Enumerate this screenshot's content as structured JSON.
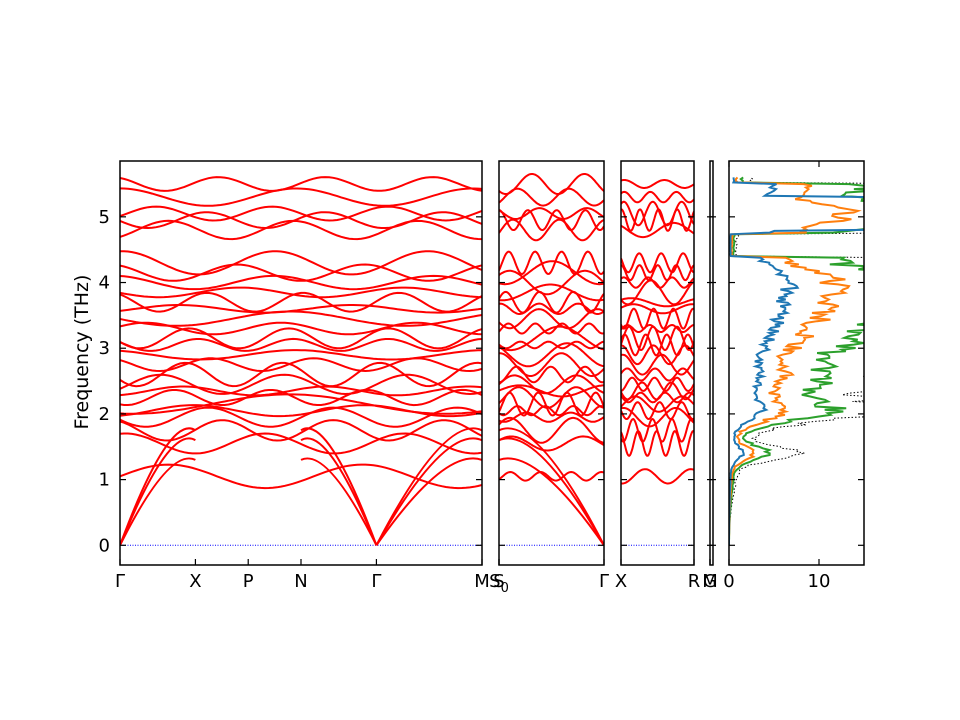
{
  "chart_data": {
    "type": "line",
    "title": "",
    "ylabel": "Frequency (THz)",
    "ylim": [
      -0.3,
      5.85
    ],
    "yticks": [
      0,
      1,
      2,
      3,
      4,
      5
    ],
    "grid": false,
    "legend": "none",
    "colors": {
      "bands": "#ff0000",
      "zero_line": "#0000ff",
      "dos_total": "#000000",
      "dos_proj": [
        "#1f77b4",
        "#ff7f0e",
        "#2ca02c"
      ]
    },
    "segments": [
      {
        "name": "path-1",
        "points": [
          {
            "label": "Γ",
            "x": 0.0
          },
          {
            "label": "X",
            "x": 0.5
          },
          {
            "label": "P",
            "x": 0.85
          },
          {
            "label": "N",
            "x": 1.2
          },
          {
            "label": "Γ",
            "x": 1.7
          },
          {
            "label": "M",
            "x": 2.4
          }
        ]
      },
      {
        "name": "path-2",
        "points": [
          {
            "label": "S",
            "x": 0.0
          },
          {
            "label": "S",
            "sub": "0",
            "x": 0.0
          },
          {
            "label": "Γ",
            "x": 1.0
          }
        ]
      },
      {
        "name": "path-3",
        "points": [
          {
            "label": "X",
            "x": 0.0
          },
          {
            "label": "R",
            "x": 1.0
          }
        ]
      },
      {
        "name": "path-4",
        "points": [
          {
            "label": "G",
            "x": 0.0
          },
          {
            "label": "M",
            "x": 0.0
          }
        ]
      }
    ],
    "dos": {
      "xlim": [
        0,
        15
      ],
      "xticks": [
        0,
        10
      ]
    }
  }
}
